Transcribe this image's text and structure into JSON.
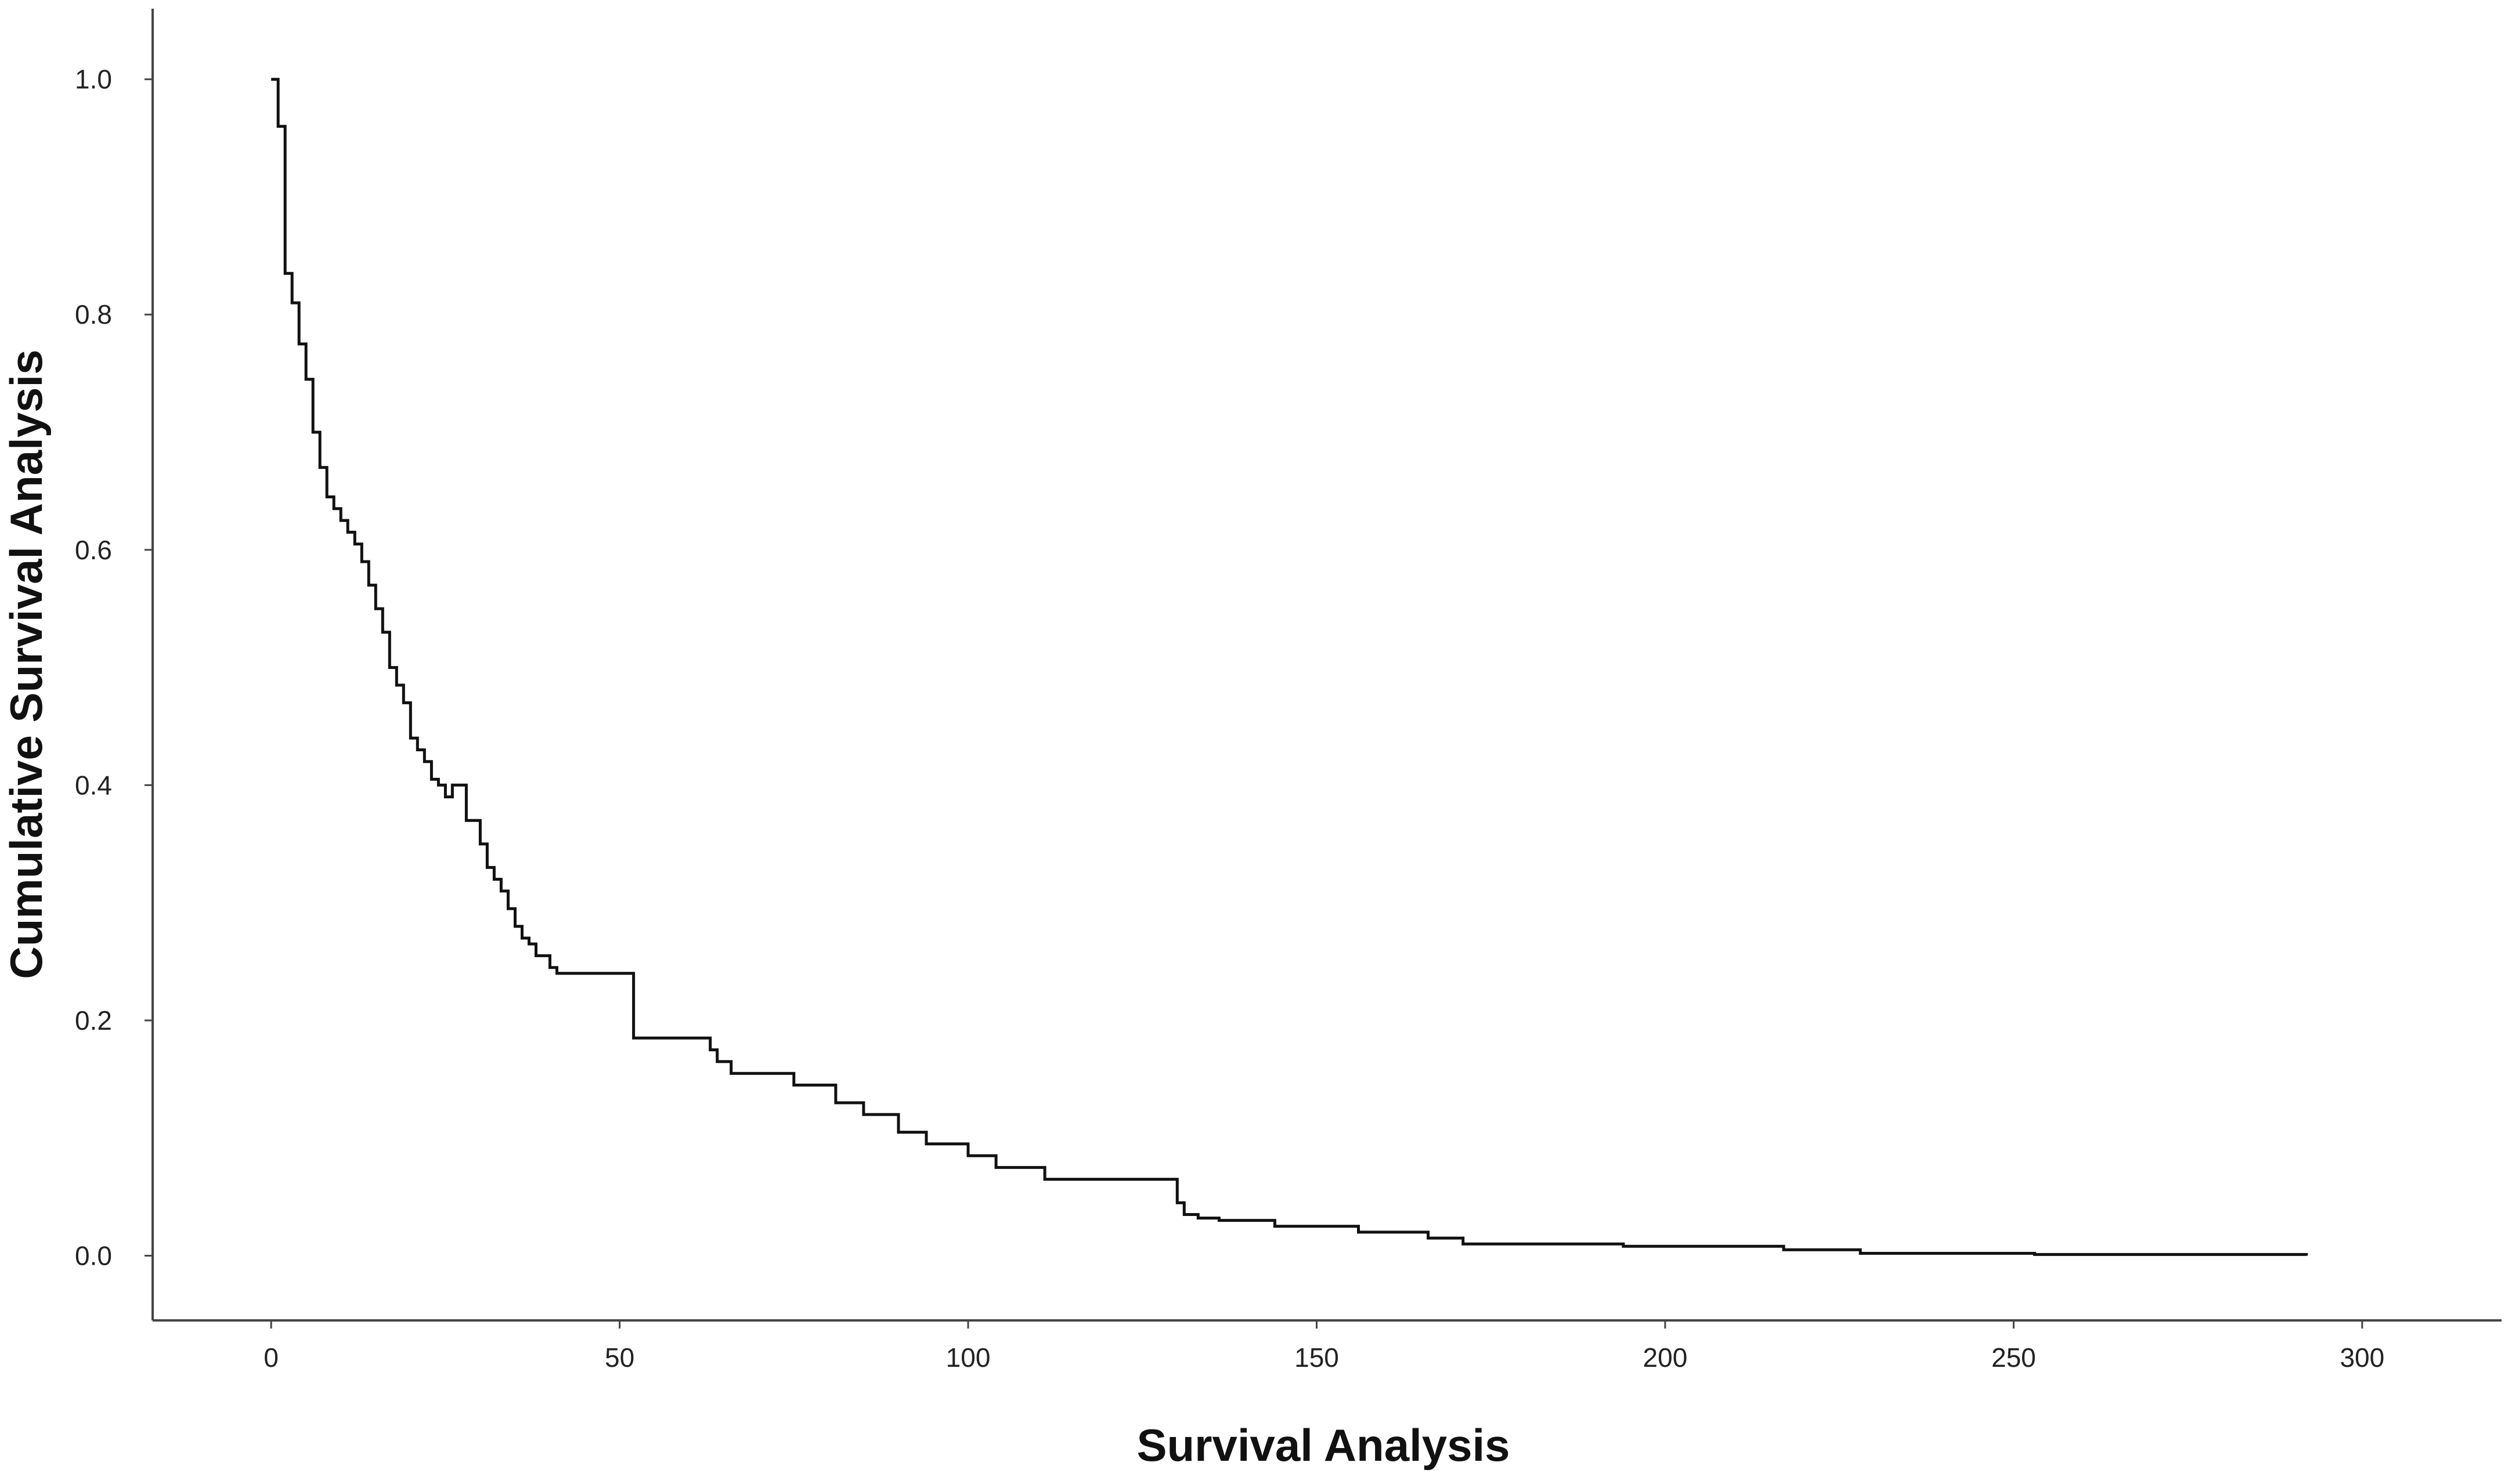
{
  "chart_data": {
    "type": "line",
    "step": true,
    "xlabel": "Survival Analysis",
    "ylabel": "Cumulative Survival Analysis",
    "xlim": [
      -17,
      320
    ],
    "ylim": [
      -0.055,
      1.06
    ],
    "x_ticks": [
      0,
      50,
      100,
      150,
      200,
      250,
      300
    ],
    "y_ticks": [
      0.0,
      0.2,
      0.4,
      0.6,
      0.8,
      1.0
    ],
    "grid": false,
    "line_color": "#111111",
    "series": [
      {
        "x": [
          0,
          1,
          2,
          3,
          4,
          5,
          6,
          7,
          8,
          9,
          10,
          11,
          12,
          13,
          14,
          15,
          16,
          17,
          18,
          19,
          20,
          21,
          22,
          23,
          24,
          25,
          26,
          28,
          30,
          31,
          32,
          33,
          34,
          35,
          36,
          37,
          38,
          40,
          41,
          42,
          43,
          44,
          45,
          52,
          53,
          63,
          64,
          66,
          75,
          81,
          85,
          90,
          94,
          100,
          104,
          111,
          130,
          131,
          133,
          136,
          144,
          156,
          166,
          171,
          194,
          217,
          228,
          253,
          292
        ],
        "y": [
          1.0,
          0.96,
          0.835,
          0.81,
          0.775,
          0.745,
          0.7,
          0.67,
          0.645,
          0.635,
          0.625,
          0.615,
          0.605,
          0.59,
          0.57,
          0.55,
          0.53,
          0.5,
          0.485,
          0.47,
          0.44,
          0.43,
          0.42,
          0.405,
          0.4,
          0.39,
          0.4,
          0.37,
          0.35,
          0.33,
          0.32,
          0.31,
          0.295,
          0.28,
          0.27,
          0.265,
          0.255,
          0.245,
          0.24,
          0.24,
          0.24,
          0.24,
          0.24,
          0.185,
          0.185,
          0.175,
          0.165,
          0.155,
          0.145,
          0.13,
          0.12,
          0.105,
          0.095,
          0.085,
          0.075,
          0.065,
          0.045,
          0.035,
          0.032,
          0.03,
          0.025,
          0.02,
          0.015,
          0.01,
          0.008,
          0.005,
          0.002,
          0.001,
          0.0
        ]
      }
    ]
  }
}
